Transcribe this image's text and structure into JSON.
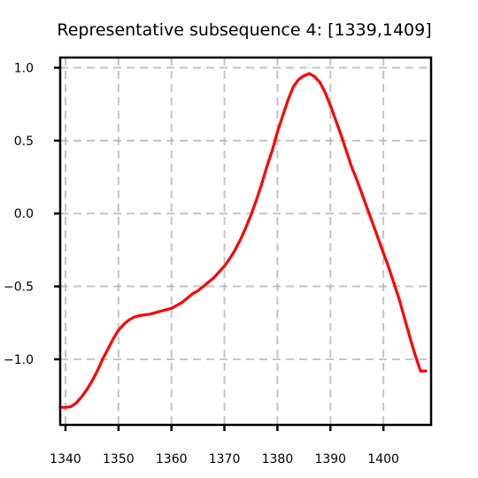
{
  "chart_data": {
    "type": "line",
    "title": "Representative subsequence 4: [1339,1409]",
    "xlabel": "",
    "ylabel": "",
    "xlim": [
      1339,
      1409
    ],
    "ylim": [
      -1.45,
      1.07
    ],
    "xticks": [
      1340,
      1350,
      1360,
      1370,
      1380,
      1390,
      1400
    ],
    "yticks": [
      1.0,
      0.5,
      0.0,
      -0.5,
      -1.0
    ],
    "ytick_labels": [
      "1.0",
      "0.5",
      "0.0",
      "−0.5",
      "−1.0"
    ],
    "grid": true,
    "line_color": "#ff0000",
    "series": [
      {
        "x": [
          1339,
          1340,
          1341,
          1342,
          1343,
          1344,
          1345,
          1346,
          1347,
          1348,
          1349,
          1350,
          1351,
          1352,
          1353,
          1354,
          1355,
          1356,
          1357,
          1358,
          1359,
          1360,
          1361,
          1362,
          1363,
          1364,
          1365,
          1366,
          1367,
          1368,
          1369,
          1370,
          1371,
          1372,
          1373,
          1374,
          1375,
          1376,
          1377,
          1378,
          1379,
          1380,
          1381,
          1382,
          1383,
          1384,
          1385,
          1386,
          1387,
          1388,
          1389,
          1390,
          1391,
          1392,
          1393,
          1394,
          1395,
          1396,
          1397,
          1398,
          1399,
          1400,
          1401,
          1402,
          1403,
          1404,
          1405,
          1406,
          1407,
          1408
        ],
        "values": [
          -1.33,
          -1.33,
          -1.325,
          -1.3,
          -1.26,
          -1.21,
          -1.15,
          -1.08,
          -1.0,
          -0.93,
          -0.86,
          -0.8,
          -0.76,
          -0.73,
          -0.71,
          -0.7,
          -0.695,
          -0.69,
          -0.68,
          -0.67,
          -0.66,
          -0.65,
          -0.63,
          -0.61,
          -0.58,
          -0.55,
          -0.53,
          -0.5,
          -0.47,
          -0.44,
          -0.4,
          -0.36,
          -0.31,
          -0.25,
          -0.18,
          -0.1,
          -0.01,
          0.09,
          0.2,
          0.32,
          0.43,
          0.56,
          0.67,
          0.78,
          0.87,
          0.92,
          0.945,
          0.96,
          0.94,
          0.9,
          0.83,
          0.74,
          0.64,
          0.54,
          0.43,
          0.32,
          0.23,
          0.13,
          0.03,
          -0.07,
          -0.17,
          -0.27,
          -0.37,
          -0.48,
          -0.59,
          -0.72,
          -0.85,
          -0.97,
          -1.08,
          -1.08
        ]
      }
    ]
  }
}
